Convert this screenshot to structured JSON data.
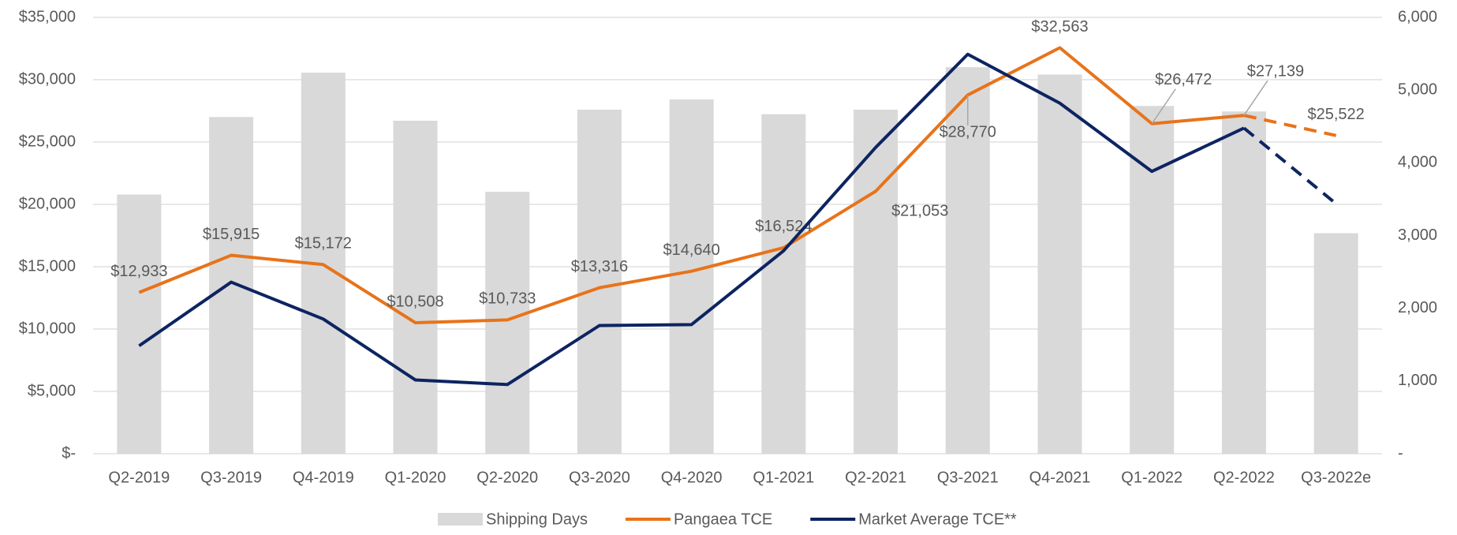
{
  "chart_data": {
    "type": "bar-line",
    "categories": [
      "Q2-2019",
      "Q3-2019",
      "Q4-2019",
      "Q1-2020",
      "Q2-2020",
      "Q3-2020",
      "Q4-2020",
      "Q1-2021",
      "Q2-2021",
      "Q3-2021",
      "Q4-2021",
      "Q1-2022",
      "Q2-2022",
      "Q3-2022e"
    ],
    "series": [
      {
        "name": "Shipping Days",
        "type": "bar",
        "axis": "y2",
        "color": "#d9d9d9",
        "values": [
          3564,
          4630,
          5239,
          4579,
          3602,
          4731,
          4871,
          4668,
          4731,
          5315,
          5213,
          4782,
          4706,
          3032
        ]
      },
      {
        "name": "Pangaea TCE",
        "type": "line",
        "axis": "y",
        "color": "#e8731a",
        "dashed_last_segment": true,
        "values": [
          12933,
          15915,
          15172,
          10508,
          10733,
          13316,
          14640,
          16524,
          21053,
          28770,
          32563,
          26472,
          27139,
          25522
        ],
        "value_labels": [
          "$12,933",
          "$15,915",
          "$15,172",
          "$10,508",
          "$10,733",
          "$13,316",
          "$14,640",
          "$16,524",
          "$21,053",
          "$28,770",
          "$32,563",
          "$26,472",
          "$27,139",
          "$25,522"
        ]
      },
      {
        "name": "Market Average TCE**",
        "type": "line",
        "axis": "y",
        "color": "#0d2461",
        "dashed_last_segment": true,
        "values": [
          8657,
          13763,
          10803,
          5920,
          5550,
          10285,
          10359,
          16279,
          24567,
          32040,
          28118,
          22643,
          26120,
          20053
        ]
      }
    ],
    "ylim": [
      0,
      35000
    ],
    "yticks": [
      {
        "value": 0,
        "label": "$-"
      },
      {
        "value": 5000,
        "label": "$5,000"
      },
      {
        "value": 10000,
        "label": "$10,000"
      },
      {
        "value": 15000,
        "label": "$15,000"
      },
      {
        "value": 20000,
        "label": "$20,000"
      },
      {
        "value": 25000,
        "label": "$25,000"
      },
      {
        "value": 30000,
        "label": "$30,000"
      },
      {
        "value": 35000,
        "label": "$35,000"
      }
    ],
    "y2lim": [
      0,
      6000
    ],
    "y2ticks": [
      {
        "value": 0,
        "label": "-"
      },
      {
        "value": 1000,
        "label": "1,000"
      },
      {
        "value": 2000,
        "label": "2,000"
      },
      {
        "value": 3000,
        "label": "3,000"
      },
      {
        "value": 4000,
        "label": "4,000"
      },
      {
        "value": 5000,
        "label": "5,000"
      },
      {
        "value": 6000,
        "label": "6,000"
      }
    ],
    "grid": true,
    "legend": "bottom"
  }
}
